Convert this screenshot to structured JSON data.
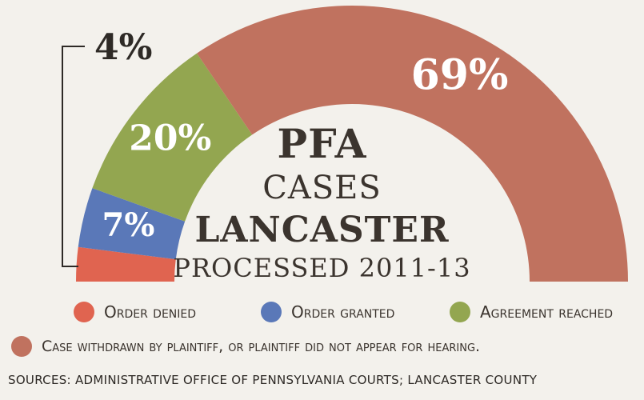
{
  "chart_data": {
    "type": "pie",
    "variant": "semicircle-donut",
    "title_lines": [
      "PFA",
      "CASES",
      "LANCASTER",
      "PROCESSED 2011-13"
    ],
    "slices": [
      {
        "label": "Order denied",
        "value": 4,
        "display": "4%",
        "color": "#e06450"
      },
      {
        "label": "Order granted",
        "value": 7,
        "display": "7%",
        "color": "#5a78b8"
      },
      {
        "label": "Agreement reached",
        "value": 20,
        "display": "20%",
        "color": "#93a650"
      },
      {
        "label": "Case withdrawn by plaintiff, or plaintiff did not appear for hearing.",
        "value": 69,
        "display": "69%",
        "color": "#c0725f"
      }
    ]
  },
  "legend": [
    {
      "label": "Order denied",
      "color": "#e06450"
    },
    {
      "label": "Order granted",
      "color": "#5a78b8"
    },
    {
      "label": "Agreement reached",
      "color": "#93a650"
    },
    {
      "label": "Case withdrawn by plaintiff, or plaintiff did not appear for hearing.",
      "color": "#c0725f"
    }
  ],
  "sources": "SOURCES:  ADMINISTRATIVE OFFICE OF PENNSYLVANIA COURTS; LANCASTER COUNTY"
}
